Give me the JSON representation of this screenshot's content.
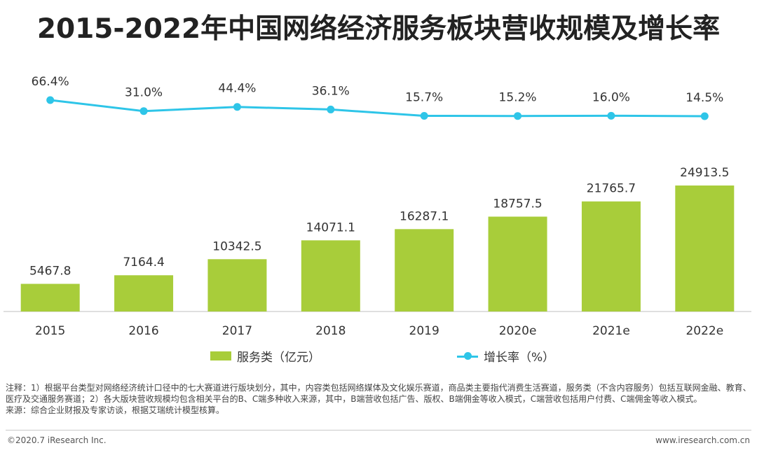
{
  "title": "2015-2022年中国网络经济服务板块营收规模及增长率",
  "chart_data": {
    "type": "bar+line",
    "categories": [
      "2015",
      "2016",
      "2017",
      "2018",
      "2019",
      "2020e",
      "2021e",
      "2022e"
    ],
    "series": [
      {
        "name": "服务类（亿元）",
        "type": "bar",
        "values": [
          5467.8,
          7164.4,
          10342.5,
          14071.1,
          16287.1,
          18757.5,
          21765.7,
          24913.5
        ],
        "labels": [
          "5467.8",
          "7164.4",
          "10342.5",
          "14071.1",
          "16287.1",
          "18757.5",
          "21765.7",
          "24913.5"
        ],
        "color": "#a8cd3a"
      },
      {
        "name": "增长率（%）",
        "type": "line",
        "values": [
          66.4,
          31.0,
          44.4,
          36.1,
          15.7,
          15.2,
          16.0,
          14.5
        ],
        "labels": [
          "66.4%",
          "31.0%",
          "44.4%",
          "36.1%",
          "15.7%",
          "15.2%",
          "16.0%",
          "14.5%"
        ],
        "color": "#2ec5e8"
      }
    ]
  },
  "legend": {
    "bar_label": "服务类（亿元）",
    "line_label": "增长率（%）"
  },
  "notes": {
    "note": "注释：1）根据平台类型对网络经济统计口径中的七大赛道进行版块划分，其中，内容类包括网络媒体及文化娱乐赛道，商品类主要指代消费生活赛道，服务类（不含内容服务）包括互联网金融、教育、医疗及交通服务赛道；2）各大版块营收规模均包含相关平台的B、C端多种收入来源，其中，B端营收包括广告、版权、B端佣金等收入模式，C端营收包括用户付费、C端佣金等收入模式。",
    "source": "来源：综合企业财报及专家访谈，根据艾瑞统计模型核算。"
  },
  "footer": {
    "copyright": "©2020.7 iResearch Inc.",
    "website": "www.iresearch.com.cn"
  }
}
